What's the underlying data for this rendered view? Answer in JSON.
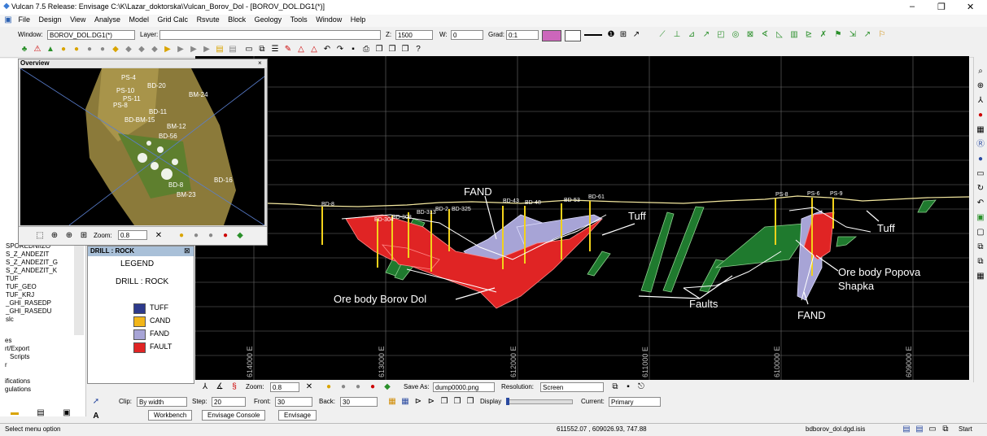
{
  "window": {
    "title": "Vulcan 7.5 Release: Envisage  C:\\K\\Lazar_doktorska\\Vulcan_Borov_Dol - [BOROV_DOL.DG1(*)]",
    "controls": [
      "–",
      "❐",
      "✕"
    ]
  },
  "menu": [
    "File",
    "Design",
    "View",
    "Analyse",
    "Model",
    "Grid Calc",
    "Rsvute",
    "Block",
    "Geology",
    "Tools",
    "Window",
    "Help"
  ],
  "toolbar": {
    "window_label": "Window:",
    "window_value": "BOROV_DOL.DG1(*)",
    "layer_label": "Layer:",
    "layer_value": "",
    "z_label": "Z:",
    "z_value": "1500",
    "w_label": "W:",
    "w_value": "0",
    "grad_label": "Grad:",
    "grad_value": "0:1",
    "color_swatch": "#cc66bb"
  },
  "overview": {
    "title": "Overview",
    "zoom_label": "Zoom:",
    "zoom_value": "0.8",
    "holes": [
      "PS-4",
      "BD-20",
      "PS-10",
      "BM-24",
      "PS-11",
      "PS-8",
      "BD-11",
      "BD-BM-15",
      "BM-12",
      "BD-56",
      "BD-16",
      "BD-8",
      "BM-23"
    ]
  },
  "left_panel": {
    "items": [
      "SPOREDNIIZO",
      "S_Z_ANDEZIT",
      "S_Z_ANDEZIT_G",
      "S_Z_ANDEZIT_K",
      "TUF",
      "TUF_GEO",
      "TUF_KRJ",
      "_GHI_RASEDP",
      "_GHI_RASEDU",
      "slc",
      "es",
      "rt/Export",
      "Scripts",
      "r",
      "ifications",
      "gulations"
    ]
  },
  "legend": {
    "window_title": "DRILL : ROCK",
    "heading": "LEGEND",
    "subheading": "DRILL : ROCK",
    "entries": [
      {
        "label": "TUFF",
        "color": "#2d3a8c"
      },
      {
        "label": "CAND",
        "color": "#f2b619"
      },
      {
        "label": "FAND",
        "color": "#a7a4d6"
      },
      {
        "label": "FAULT",
        "color": "#e02424"
      }
    ]
  },
  "section": {
    "annotations": {
      "fand_top": "FAND",
      "tuff_1": "Tuff",
      "tuff_2": "Tuff",
      "ore_borov": "Ore body Borov Dol",
      "ore_popova": "Ore body Popova",
      "ore_popova_2": "Shapka",
      "faults": "Faults",
      "fand_bottom": "FAND"
    },
    "easting_labels": [
      "614000 E",
      "613000 E",
      "612000 E",
      "611000 E",
      "610000 E",
      "609000 E"
    ],
    "hole_labels": [
      "BD-8",
      "BD-304",
      "BD-308",
      "BD-313",
      "BD-2",
      "BD-325",
      "BD-43",
      "BD-48",
      "BD-53",
      "BD-61",
      "PS-8",
      "PS-6",
      "PS-9"
    ]
  },
  "bottom_toolbar": {
    "zoom_label": "Zoom:",
    "zoom_value": "0.8",
    "save_as_label": "Save As:",
    "save_as_value": "dump0000.png",
    "resolution_label": "Resolution:",
    "resolution_value": "Screen",
    "clip_label": "Clip:",
    "clip_value": "By width",
    "step_label": "Step:",
    "step_value": "20",
    "front_label": "Front:",
    "front_value": "30",
    "back_label": "Back:",
    "back_value": "30",
    "display_label": "Display",
    "current_label": "Current:",
    "current_value": "Primary"
  },
  "tabs": [
    "Workbench",
    "Envisage Console",
    "Envisage"
  ],
  "status": {
    "message": "Select menu option",
    "coordinates": "611552.07 , 609026.93, 747.88",
    "file": "bdborov_dol.dgd.isis",
    "start": "Start"
  }
}
